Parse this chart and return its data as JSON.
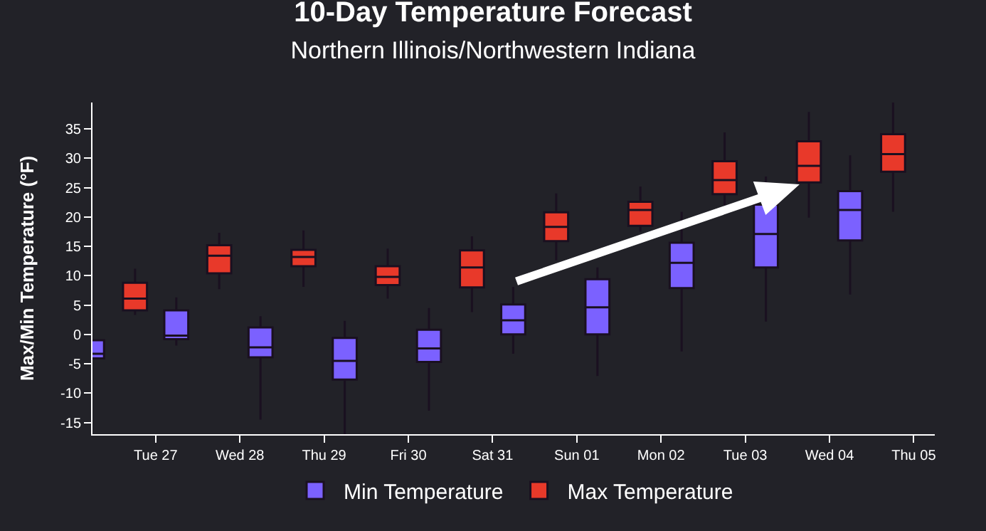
{
  "chart_data": {
    "type": "box",
    "title": "10-Day Temperature Forecast",
    "subtitle": "Northern Illinois/Northwestern Indiana",
    "ylabel": "Max/Min Temperature (°F)",
    "categories": [
      null,
      "Tue 27",
      "Wed 28",
      "Thu 29",
      "Fri 30",
      "Sat 31",
      "Sun 01",
      "Mon 02",
      "Tue 03",
      "Wed 04",
      "Thu 05"
    ],
    "ylim": [
      -17,
      39.5
    ],
    "yticks": [
      -15,
      -10,
      -5,
      0,
      5,
      10,
      15,
      20,
      25,
      30,
      35
    ],
    "legend": "bottom",
    "series": [
      {
        "name": "Min Temperature",
        "color": "#7b61ff",
        "boxes": [
          {
            "low": -4.1,
            "q1": -4.1,
            "median": -3.3,
            "q3": -1.0,
            "high": -1.0
          },
          {
            "low": -1.9,
            "q1": -0.8,
            "median": -0.2,
            "q3": 4.1,
            "high": 6.3
          },
          {
            "low": -14.5,
            "q1": -3.9,
            "median": -2.2,
            "q3": 1.2,
            "high": 3.1
          },
          {
            "low": -17,
            "q1": -7.7,
            "median": -4.5,
            "q3": -0.6,
            "high": 2.3
          },
          {
            "low": -13.0,
            "q1": -4.7,
            "median": -2.4,
            "q3": 0.8,
            "high": 4.5
          },
          {
            "low": -3.3,
            "q1": 0,
            "median": 2.4,
            "q3": 5.1,
            "high": 8.1
          },
          {
            "low": -7.1,
            "q1": 0,
            "median": 4.6,
            "q3": 9.4,
            "high": 11.4
          },
          {
            "low": -2.9,
            "q1": 7.9,
            "median": 12.2,
            "q3": 15.6,
            "high": 20.9
          },
          {
            "low": 2.2,
            "q1": 11.4,
            "median": 17.1,
            "q3": 22.1,
            "high": 26.9
          },
          {
            "low": 6.8,
            "q1": 16.0,
            "median": 21.2,
            "q3": 24.4,
            "high": 30.5
          },
          null
        ]
      },
      {
        "name": "Max Temperature",
        "color": "#e8392a",
        "boxes": [
          null,
          {
            "low": 3.3,
            "q1": 4.1,
            "median": 6.1,
            "q3": 8.8,
            "high": 11.2
          },
          {
            "low": 7.7,
            "q1": 10.4,
            "median": 13.4,
            "q3": 15.2,
            "high": 17.3
          },
          {
            "low": 8.1,
            "q1": 11.6,
            "median": 13.2,
            "q3": 14.4,
            "high": 17.7
          },
          {
            "low": 6.1,
            "q1": 8.4,
            "median": 9.8,
            "q3": 11.6,
            "high": 14.6
          },
          {
            "low": 3.8,
            "q1": 8.0,
            "median": 11.4,
            "q3": 14.3,
            "high": 16.7
          },
          {
            "low": 12.6,
            "q1": 15.9,
            "median": 18.3,
            "q3": 20.8,
            "high": 24.0
          },
          {
            "low": 17.5,
            "q1": 18.5,
            "median": 21.2,
            "q3": 22.6,
            "high": 25.2
          },
          {
            "low": 22.0,
            "q1": 23.9,
            "median": 26.3,
            "q3": 29.5,
            "high": 34.4
          },
          {
            "low": 19.9,
            "q1": 25.9,
            "median": 28.7,
            "q3": 32.9,
            "high": 37.9
          },
          {
            "low": 20.9,
            "q1": 27.7,
            "median": 30.7,
            "q3": 34.1,
            "high": 39.5
          }
        ]
      }
    ]
  }
}
